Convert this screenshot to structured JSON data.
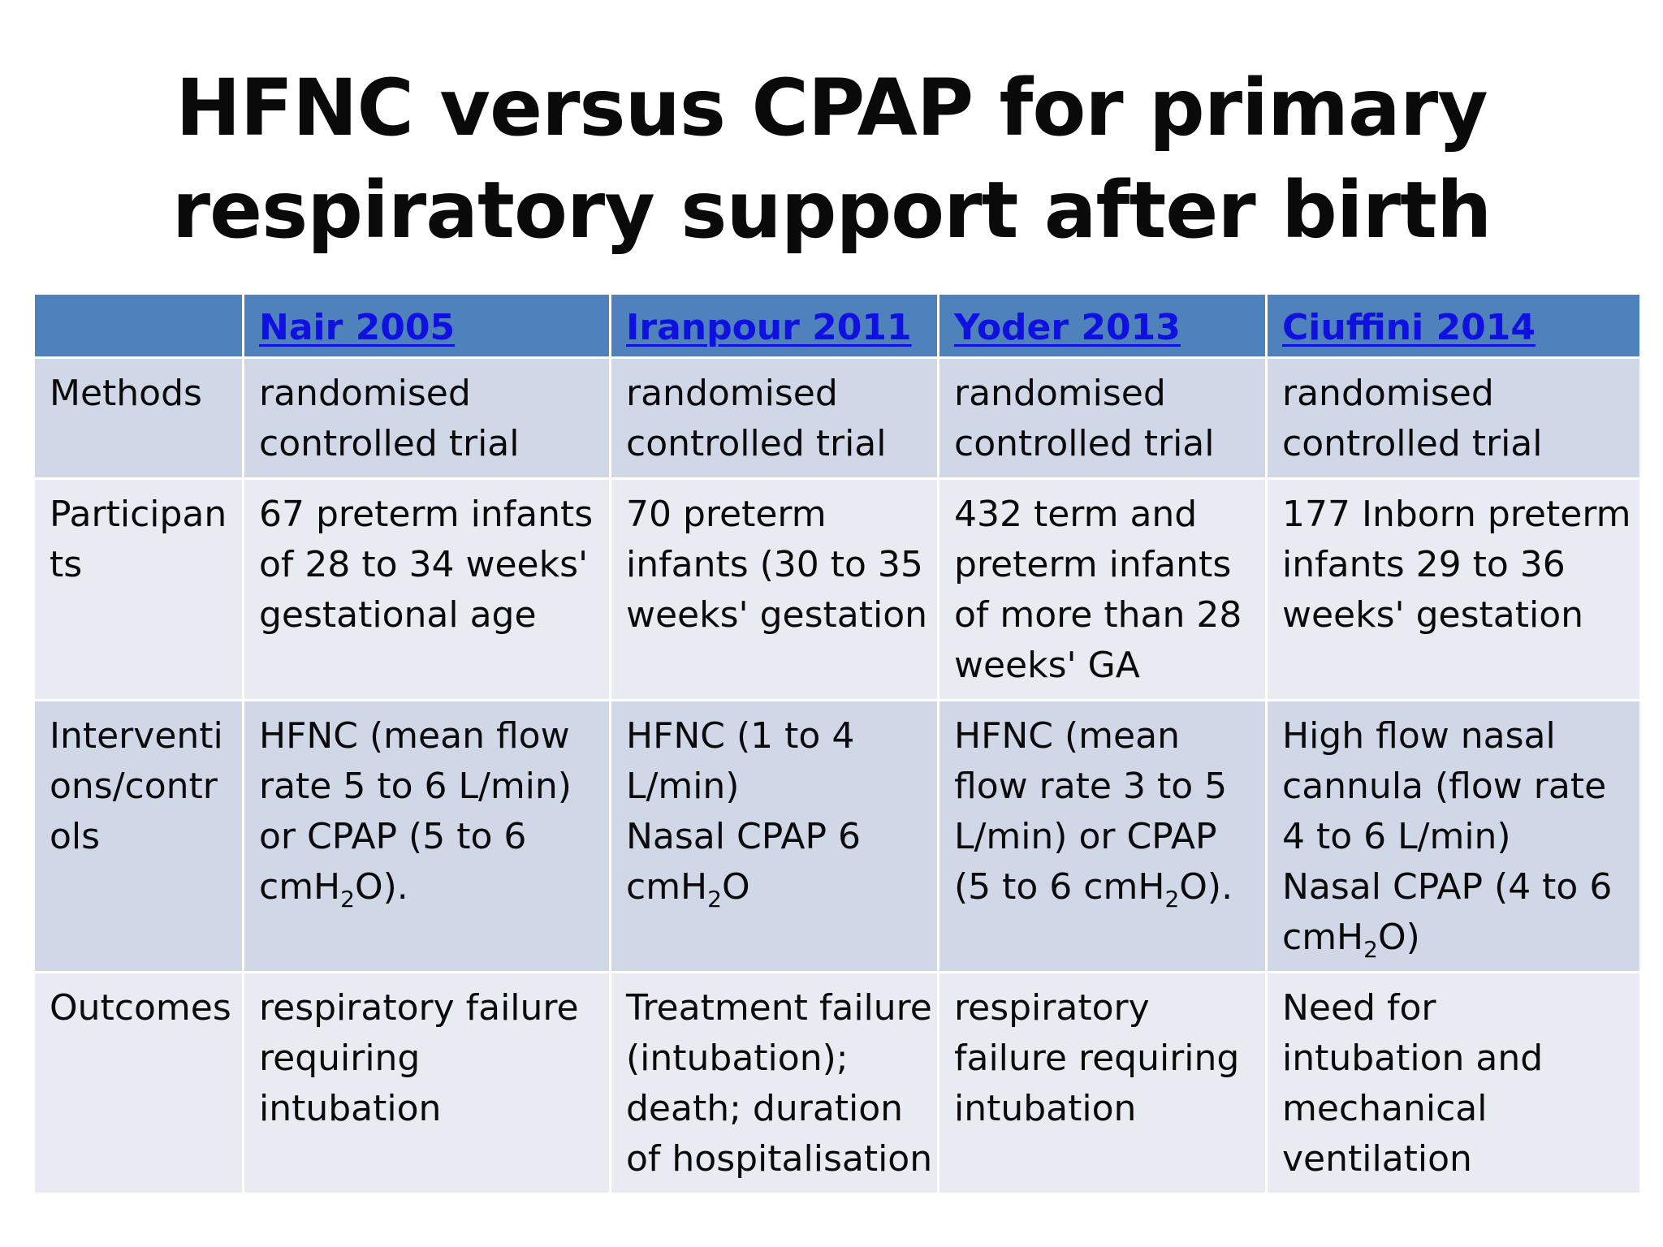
{
  "slide": {
    "title_line1": "HFNC versus CPAP for primary",
    "title_line2": "respiratory support after birth"
  },
  "table": {
    "headers": [
      "",
      "Nair 2005",
      "Iranpour 2011",
      "Yoder 2013",
      "Ciuffini 2014"
    ],
    "rows": {
      "methods": {
        "label": [
          "Methods"
        ],
        "cells": [
          [
            "randomised",
            "controlled trial"
          ],
          [
            "randomised",
            "controlled trial"
          ],
          [
            "randomised",
            "controlled trial"
          ],
          [
            "randomised",
            "controlled trial"
          ]
        ]
      },
      "participants": {
        "label": [
          "Participan",
          "ts"
        ],
        "cells": [
          [
            "67 preterm infants",
            "of 28 to 34 weeks'",
            "gestational age"
          ],
          [
            "70 preterm",
            "infants (30 to 35",
            "weeks' gestation"
          ],
          [
            "432 term and",
            "preterm infants",
            "of more than 28",
            "weeks' GA"
          ],
          [
            "177 Inborn preterm",
            "infants 29 to 36",
            "weeks' gestation"
          ]
        ]
      },
      "interventions": {
        "label": [
          "Interventi",
          "ons/contr",
          "ols"
        ],
        "subscript": "2",
        "cells": [
          {
            "lines": [
              "HFNC (mean flow",
              "rate 5 to 6 L/min)",
              "or CPAP (5 to 6"
            ],
            "last_prefix": "cmH",
            "last_suffix": "O)."
          },
          {
            "lines": [
              "HFNC (1 to 4",
              "L/min)",
              "Nasal CPAP 6"
            ],
            "last_prefix": "cmH",
            "last_suffix": "O"
          },
          {
            "lines": [
              "HFNC (mean",
              "flow rate 3 to 5",
              "L/min) or CPAP"
            ],
            "last_prefix": "(5 to 6 cmH",
            "last_suffix": "O)."
          },
          {
            "lines": [
              "High flow nasal",
              "cannula (flow rate",
              "4 to 6 L/min)",
              "Nasal CPAP (4 to 6"
            ],
            "last_prefix": "cmH",
            "last_suffix": "O)"
          }
        ]
      },
      "outcomes": {
        "label": [
          "Outcomes"
        ],
        "cells": [
          [
            "respiratory failure",
            "requiring",
            "intubation"
          ],
          [
            "Treatment failure",
            "(intubation);",
            "death; duration",
            "of hospitalisation"
          ],
          [
            "respiratory",
            "failure requiring",
            "intubation"
          ],
          [
            "Need for",
            "intubation and",
            "mechanical",
            "ventilation"
          ]
        ]
      }
    }
  },
  "colors": {
    "header_bg": "#4f81bd",
    "link": "#1010e0",
    "row_dark": "#d0d8e8",
    "row_light": "#e9ebf2"
  }
}
